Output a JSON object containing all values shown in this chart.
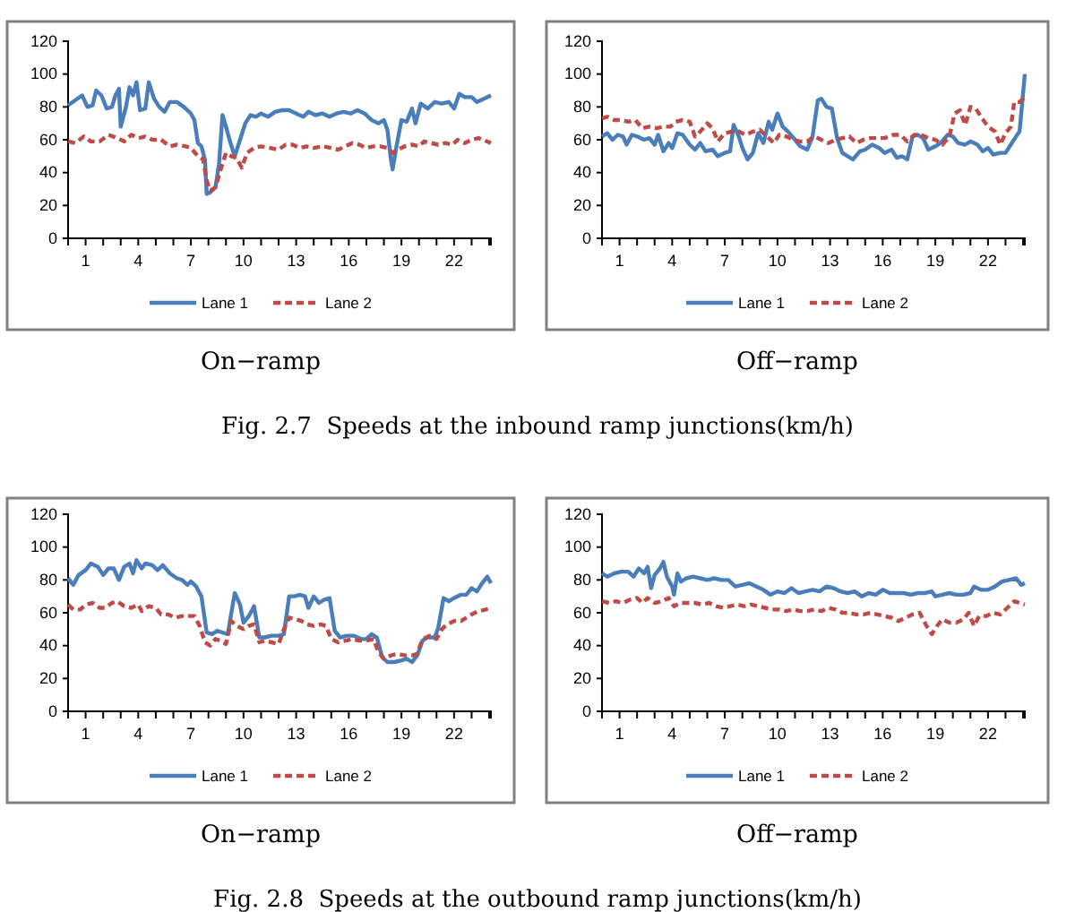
{
  "chart_data": [
    {
      "type": "line",
      "title": "On−ramp",
      "annotations": [
        "Fig. 2.7  Speeds at the inbound ramp junctions(km/h)"
      ],
      "legend": "bottom",
      "xlim": [
        0,
        24.1
      ],
      "ylim": [
        0,
        120
      ],
      "yticks": [
        0,
        20,
        40,
        60,
        80,
        100,
        120
      ],
      "xticks": [
        {
          "value": 0,
          "label": null
        },
        1,
        {
          "value": 2,
          "label": null
        },
        {
          "value": 3,
          "label": null
        },
        4,
        {
          "value": 5,
          "label": null
        },
        {
          "value": 6,
          "label": null
        },
        7,
        {
          "value": 8,
          "label": null
        },
        {
          "value": 9,
          "label": null
        },
        10,
        {
          "value": 11,
          "label": null
        },
        {
          "value": 12,
          "label": null
        },
        13,
        {
          "value": 14,
          "label": null
        },
        {
          "value": 15,
          "label": null
        },
        16,
        {
          "value": 17,
          "label": null
        },
        {
          "value": 18,
          "label": null
        },
        19,
        {
          "value": 20,
          "label": null
        },
        {
          "value": 21,
          "label": null
        },
        22,
        {
          "value": 23,
          "label": null
        },
        {
          "value": 24,
          "label": null
        }
      ],
      "series": [
        {
          "name": "Lane 1",
          "color": "#4a7ebb",
          "line_style": "solid",
          "x": [
            0,
            0.4,
            0.8,
            1.1,
            1.4,
            1.6,
            1.9,
            2.2,
            2.5,
            2.7,
            2.9,
            3.0,
            3.3,
            3.5,
            3.7,
            3.9,
            4.1,
            4.4,
            4.6,
            4.9,
            5.2,
            5.5,
            5.8,
            6.2,
            6.6,
            7.0,
            7.2,
            7.4,
            7.6,
            7.8,
            7.9,
            8.1,
            8.4,
            8.6,
            8.8,
            9.0,
            9.2,
            9.5,
            9.8,
            10.1,
            10.4,
            10.7,
            11.0,
            11.4,
            11.8,
            12.2,
            12.6,
            13.0,
            13.4,
            13.7,
            14.1,
            14.5,
            14.9,
            15.3,
            15.7,
            16.1,
            16.5,
            16.9,
            17.3,
            17.7,
            18.0,
            18.2,
            18.4,
            18.5,
            18.7,
            19.0,
            19.3,
            19.6,
            19.8,
            20.1,
            20.5,
            20.9,
            21.3,
            21.7,
            22.0,
            22.3,
            22.6,
            23.0,
            23.3,
            23.7,
            24.1
          ],
          "values": [
            81,
            84,
            87,
            80,
            81,
            90,
            87,
            79,
            80,
            87,
            91,
            68,
            80,
            92,
            87,
            95,
            78,
            79,
            95,
            85,
            80,
            77,
            83,
            83,
            80,
            76,
            72,
            58,
            56,
            48,
            27,
            28,
            31,
            45,
            75,
            68,
            60,
            50,
            60,
            70,
            75,
            74,
            76,
            74,
            77,
            78,
            78,
            76,
            74,
            77,
            75,
            76,
            74,
            76,
            77,
            76,
            78,
            76,
            72,
            70,
            72,
            66,
            48,
            42,
            55,
            72,
            71,
            79,
            70,
            82,
            79,
            83,
            82,
            83,
            79,
            88,
            86,
            86,
            83,
            85,
            87
          ]
        },
        {
          "name": "Lane 2",
          "color": "#be4b48",
          "line_style": "dashed",
          "x": [
            0,
            0.4,
            0.9,
            1.3,
            1.8,
            2.3,
            2.8,
            3.2,
            3.6,
            4.0,
            4.4,
            4.8,
            5.3,
            5.8,
            6.2,
            6.7,
            7.0,
            7.4,
            7.7,
            7.9,
            8.1,
            8.4,
            8.7,
            9.0,
            9.3,
            9.6,
            9.9,
            10.2,
            10.6,
            11.0,
            11.5,
            12.0,
            12.4,
            12.8,
            13.2,
            13.6,
            14.0,
            14.5,
            15.0,
            15.4,
            15.8,
            16.2,
            16.6,
            17.0,
            17.4,
            17.8,
            18.2,
            18.5,
            18.8,
            19.2,
            19.6,
            20.0,
            20.3,
            20.7,
            21.1,
            21.5,
            21.9,
            22.2,
            22.6,
            23.0,
            23.4,
            24.1
          ],
          "values": [
            59,
            58,
            62,
            59,
            59,
            63,
            61,
            59,
            63,
            61,
            62,
            60,
            60,
            56,
            57,
            56,
            55,
            50,
            48,
            35,
            29,
            31,
            42,
            52,
            50,
            49,
            43,
            52,
            55,
            56,
            55,
            54,
            57,
            57,
            55,
            56,
            55,
            56,
            55,
            54,
            56,
            58,
            57,
            55,
            56,
            56,
            55,
            52,
            54,
            56,
            57,
            56,
            59,
            58,
            57,
            58,
            57,
            60,
            58,
            60,
            61,
            58
          ]
        }
      ]
    },
    {
      "type": "line",
      "title": "Off−ramp",
      "legend": "bottom",
      "xlim": [
        0,
        24.1
      ],
      "ylim": [
        0,
        120
      ],
      "yticks": [
        0,
        20,
        40,
        60,
        80,
        100,
        120
      ],
      "xticks": [
        {
          "value": 0,
          "label": null
        },
        1,
        {
          "value": 2,
          "label": null
        },
        {
          "value": 3,
          "label": null
        },
        4,
        {
          "value": 5,
          "label": null
        },
        {
          "value": 6,
          "label": null
        },
        7,
        {
          "value": 8,
          "label": null
        },
        {
          "value": 9,
          "label": null
        },
        10,
        {
          "value": 11,
          "label": null
        },
        {
          "value": 12,
          "label": null
        },
        13,
        {
          "value": 14,
          "label": null
        },
        {
          "value": 15,
          "label": null
        },
        16,
        {
          "value": 17,
          "label": null
        },
        {
          "value": 18,
          "label": null
        },
        19,
        {
          "value": 20,
          "label": null
        },
        {
          "value": 21,
          "label": null
        },
        22,
        {
          "value": 23,
          "label": null
        },
        {
          "value": 24,
          "label": null
        }
      ],
      "series": [
        {
          "name": "Lane 1",
          "color": "#4a7ebb",
          "line_style": "solid",
          "x": [
            0,
            0.3,
            0.6,
            0.9,
            1.2,
            1.4,
            1.7,
            2.0,
            2.4,
            2.7,
            3.0,
            3.2,
            3.5,
            3.8,
            4.0,
            4.3,
            4.6,
            5.0,
            5.3,
            5.6,
            5.9,
            6.3,
            6.6,
            7.0,
            7.3,
            7.5,
            7.8,
            8.0,
            8.3,
            8.6,
            8.9,
            9.2,
            9.5,
            9.7,
            10.0,
            10.3,
            10.6,
            11.0,
            11.3,
            11.7,
            12.0,
            12.3,
            12.5,
            12.8,
            13.1,
            13.4,
            13.7,
            14.0,
            14.3,
            14.7,
            15.0,
            15.4,
            15.8,
            16.1,
            16.5,
            16.8,
            17.1,
            17.4,
            17.7,
            18.0,
            18.3,
            18.6,
            19.0,
            19.3,
            19.7,
            20.0,
            20.3,
            20.7,
            21.0,
            21.4,
            21.7,
            22.0,
            22.3,
            22.7,
            23.0,
            23.3,
            23.6,
            23.8,
            24.1
          ],
          "values": [
            62,
            64,
            60,
            63,
            62,
            57,
            63,
            62,
            60,
            61,
            57,
            63,
            53,
            58,
            55,
            64,
            63,
            57,
            54,
            58,
            53,
            54,
            50,
            52,
            53,
            69,
            62,
            55,
            48,
            52,
            64,
            58,
            71,
            66,
            76,
            68,
            65,
            60,
            56,
            54,
            62,
            84,
            85,
            80,
            79,
            61,
            52,
            50,
            48,
            53,
            54,
            57,
            55,
            52,
            54,
            49,
            50,
            48,
            62,
            63,
            61,
            54,
            56,
            58,
            63,
            62,
            58,
            57,
            59,
            57,
            53,
            55,
            51,
            52,
            52,
            57,
            62,
            65,
            100
          ]
        },
        {
          "name": "Lane 2",
          "color": "#be4b48",
          "line_style": "dashed",
          "x": [
            0,
            0.3,
            0.7,
            1.1,
            1.5,
            1.9,
            2.3,
            2.7,
            3.1,
            3.5,
            3.9,
            4.2,
            4.6,
            5.0,
            5.3,
            5.6,
            6.0,
            6.3,
            6.6,
            7.0,
            7.4,
            7.8,
            8.2,
            8.6,
            9.0,
            9.4,
            9.8,
            10.1,
            10.5,
            10.9,
            11.3,
            11.7,
            12.1,
            12.5,
            12.9,
            13.3,
            13.7,
            14.1,
            14.5,
            14.9,
            15.3,
            15.7,
            16.1,
            16.6,
            17.0,
            17.4,
            17.8,
            18.2,
            18.6,
            19.0,
            19.4,
            19.8,
            20.1,
            20.4,
            20.7,
            21.0,
            21.3,
            21.6,
            22.0,
            22.4,
            22.7,
            23.0,
            23.3,
            23.5,
            23.8,
            24.0,
            24.1
          ],
          "values": [
            73,
            74,
            72,
            72,
            71,
            72,
            67,
            68,
            67,
            68,
            68,
            71,
            72,
            71,
            62,
            65,
            70,
            67,
            59,
            64,
            65,
            65,
            63,
            65,
            66,
            62,
            58,
            63,
            62,
            60,
            59,
            59,
            62,
            60,
            58,
            60,
            61,
            62,
            58,
            60,
            61,
            61,
            61,
            63,
            63,
            59,
            63,
            63,
            61,
            60,
            57,
            62,
            76,
            78,
            69,
            80,
            79,
            74,
            68,
            65,
            57,
            64,
            68,
            83,
            83,
            85,
            87
          ]
        }
      ]
    },
    {
      "type": "line",
      "title": "On−ramp",
      "annotations": [
        "Fig. 2.8  Speeds at the outbound ramp junctions(km/h)"
      ],
      "legend": "bottom",
      "xlim": [
        0,
        24.1
      ],
      "ylim": [
        0,
        120
      ],
      "yticks": [
        0,
        20,
        40,
        60,
        80,
        100,
        120
      ],
      "xticks": [
        {
          "value": 0,
          "label": null
        },
        1,
        {
          "value": 2,
          "label": null
        },
        {
          "value": 3,
          "label": null
        },
        4,
        {
          "value": 5,
          "label": null
        },
        {
          "value": 6,
          "label": null
        },
        7,
        {
          "value": 8,
          "label": null
        },
        {
          "value": 9,
          "label": null
        },
        10,
        {
          "value": 11,
          "label": null
        },
        {
          "value": 12,
          "label": null
        },
        13,
        {
          "value": 14,
          "label": null
        },
        {
          "value": 15,
          "label": null
        },
        16,
        {
          "value": 17,
          "label": null
        },
        {
          "value": 18,
          "label": null
        },
        19,
        {
          "value": 20,
          "label": null
        },
        {
          "value": 21,
          "label": null
        },
        22,
        {
          "value": 23,
          "label": null
        },
        {
          "value": 24,
          "label": null
        }
      ],
      "series": [
        {
          "name": "Lane 1",
          "color": "#4a7ebb",
          "line_style": "solid",
          "x": [
            0,
            0.3,
            0.6,
            1.0,
            1.3,
            1.7,
            2.0,
            2.3,
            2.6,
            2.9,
            3.2,
            3.5,
            3.7,
            3.9,
            4.2,
            4.4,
            4.8,
            5.1,
            5.4,
            5.8,
            6.2,
            6.5,
            6.8,
            7.0,
            7.3,
            7.6,
            7.9,
            8.2,
            8.5,
            8.8,
            9.1,
            9.5,
            9.8,
            10.0,
            10.3,
            10.6,
            10.9,
            11.2,
            11.6,
            12.0,
            12.3,
            12.6,
            12.9,
            13.2,
            13.5,
            13.7,
            14.0,
            14.3,
            14.6,
            14.9,
            15.2,
            15.5,
            15.9,
            16.3,
            16.7,
            17.0,
            17.3,
            17.6,
            17.9,
            18.2,
            18.6,
            19.0,
            19.3,
            19.6,
            19.9,
            20.2,
            20.5,
            20.9,
            21.1,
            21.4,
            21.7,
            22.0,
            22.4,
            22.7,
            23.0,
            23.3,
            23.6,
            23.9,
            24.1
          ],
          "values": [
            81,
            77,
            83,
            86,
            90,
            88,
            83,
            87,
            87,
            80,
            88,
            90,
            84,
            92,
            87,
            90,
            89,
            86,
            89,
            84,
            81,
            80,
            77,
            79,
            76,
            70,
            48,
            47,
            49,
            48,
            47,
            72,
            65,
            54,
            58,
            64,
            45,
            45,
            46,
            46,
            47,
            70,
            70,
            71,
            70,
            63,
            70,
            66,
            68,
            69,
            49,
            45,
            46,
            46,
            44,
            44,
            47,
            45,
            33,
            30,
            30,
            31,
            32,
            30,
            34,
            43,
            45,
            45,
            51,
            69,
            67,
            69,
            71,
            71,
            75,
            73,
            78,
            82,
            78
          ]
        },
        {
          "name": "Lane 2",
          "color": "#be4b48",
          "line_style": "dashed",
          "x": [
            0,
            0.3,
            0.7,
            1.0,
            1.4,
            1.8,
            2.1,
            2.5,
            2.8,
            3.2,
            3.6,
            4.0,
            4.2,
            4.6,
            5.0,
            5.3,
            5.7,
            6.1,
            6.5,
            6.9,
            7.2,
            7.5,
            7.8,
            8.1,
            8.4,
            8.7,
            9.0,
            9.3,
            9.6,
            10.0,
            10.3,
            10.6,
            10.9,
            11.2,
            11.6,
            12.0,
            12.3,
            12.6,
            13.0,
            13.3,
            13.6,
            14.0,
            14.4,
            14.7,
            15.0,
            15.4,
            15.8,
            16.2,
            16.6,
            17.0,
            17.4,
            17.7,
            18.0,
            18.4,
            18.8,
            19.2,
            19.6,
            19.9,
            20.2,
            20.6,
            21.0,
            21.3,
            21.6,
            22.0,
            22.4,
            22.7,
            23.0,
            23.4,
            23.8,
            24.1
          ],
          "values": [
            65,
            62,
            62,
            65,
            66,
            63,
            63,
            66,
            67,
            64,
            63,
            65,
            61,
            64,
            63,
            59,
            59,
            57,
            58,
            58,
            58,
            52,
            42,
            40,
            44,
            43,
            41,
            55,
            52,
            50,
            52,
            53,
            42,
            43,
            42,
            41,
            50,
            57,
            56,
            55,
            53,
            52,
            53,
            52,
            44,
            42,
            43,
            44,
            43,
            43,
            44,
            36,
            32,
            34,
            35,
            34,
            34,
            35,
            44,
            46,
            44,
            50,
            53,
            55,
            55,
            57,
            59,
            61,
            62,
            63
          ]
        }
      ]
    },
    {
      "type": "line",
      "title": "Off−ramp",
      "legend": "bottom",
      "xlim": [
        0,
        24.1
      ],
      "ylim": [
        0,
        120
      ],
      "yticks": [
        0,
        20,
        40,
        60,
        80,
        100,
        120
      ],
      "xticks": [
        {
          "value": 0,
          "label": null
        },
        1,
        {
          "value": 2,
          "label": null
        },
        {
          "value": 3,
          "label": null
        },
        4,
        {
          "value": 5,
          "label": null
        },
        {
          "value": 6,
          "label": null
        },
        7,
        {
          "value": 8,
          "label": null
        },
        {
          "value": 9,
          "label": null
        },
        10,
        {
          "value": 11,
          "label": null
        },
        {
          "value": 12,
          "label": null
        },
        13,
        {
          "value": 14,
          "label": null
        },
        {
          "value": 15,
          "label": null
        },
        16,
        {
          "value": 17,
          "label": null
        },
        {
          "value": 18,
          "label": null
        },
        19,
        {
          "value": 20,
          "label": null
        },
        {
          "value": 21,
          "label": null
        },
        22,
        {
          "value": 23,
          "label": null
        },
        {
          "value": 24,
          "label": null
        }
      ],
      "series": [
        {
          "name": "Lane 1",
          "color": "#4a7ebb",
          "line_style": "solid",
          "x": [
            0,
            0.3,
            0.7,
            1.1,
            1.5,
            1.8,
            2.1,
            2.4,
            2.6,
            2.8,
            3.0,
            3.3,
            3.5,
            3.7,
            4.0,
            4.1,
            4.3,
            4.5,
            4.8,
            5.2,
            5.6,
            6.0,
            6.4,
            6.8,
            7.2,
            7.6,
            8.0,
            8.4,
            8.8,
            9.2,
            9.6,
            10.0,
            10.4,
            10.8,
            11.2,
            11.6,
            12.0,
            12.4,
            12.8,
            13.2,
            13.6,
            14.0,
            14.4,
            14.8,
            15.2,
            15.6,
            16.0,
            16.4,
            16.8,
            17.2,
            17.6,
            18.0,
            18.4,
            18.8,
            19.0,
            19.4,
            19.8,
            20.2,
            20.6,
            21.0,
            21.2,
            21.6,
            22.0,
            22.4,
            22.8,
            23.2,
            23.6,
            23.9,
            24.1
          ],
          "values": [
            84,
            82,
            84,
            85,
            85,
            82,
            87,
            84,
            88,
            75,
            83,
            87,
            91,
            82,
            76,
            71,
            84,
            79,
            81,
            82,
            81,
            80,
            81,
            80,
            80,
            76,
            77,
            78,
            76,
            74,
            71,
            73,
            72,
            75,
            72,
            73,
            74,
            73,
            76,
            75,
            73,
            72,
            73,
            70,
            72,
            71,
            74,
            72,
            72,
            72,
            71,
            72,
            72,
            73,
            70,
            71,
            72,
            71,
            71,
            72,
            76,
            74,
            74,
            76,
            79,
            80,
            81,
            77,
            78
          ]
        },
        {
          "name": "Lane 2",
          "color": "#be4b48",
          "line_style": "dashed",
          "x": [
            0,
            0.4,
            0.8,
            1.2,
            1.6,
            2.0,
            2.3,
            2.6,
            3.0,
            3.4,
            3.8,
            4.1,
            4.5,
            4.9,
            5.3,
            5.7,
            6.1,
            6.5,
            6.9,
            7.3,
            7.7,
            8.1,
            8.5,
            8.9,
            9.3,
            9.7,
            10.1,
            10.5,
            10.9,
            11.3,
            11.7,
            12.1,
            12.5,
            12.9,
            13.3,
            13.7,
            14.1,
            14.5,
            14.9,
            15.3,
            15.7,
            16.1,
            16.5,
            16.9,
            17.3,
            17.7,
            18.1,
            18.5,
            18.8,
            19.1,
            19.4,
            19.8,
            20.2,
            20.6,
            20.9,
            21.2,
            21.5,
            21.9,
            22.3,
            22.7,
            23.1,
            23.5,
            23.8,
            24.1
          ],
          "values": [
            67,
            66,
            67,
            66,
            68,
            69,
            66,
            69,
            66,
            67,
            69,
            64,
            66,
            66,
            66,
            65,
            66,
            64,
            63,
            64,
            65,
            64,
            65,
            64,
            63,
            62,
            62,
            61,
            62,
            61,
            61,
            62,
            61,
            63,
            62,
            60,
            60,
            59,
            59,
            60,
            59,
            58,
            57,
            55,
            57,
            59,
            60,
            52,
            47,
            52,
            56,
            54,
            54,
            56,
            60,
            52,
            58,
            58,
            60,
            59,
            63,
            67,
            66,
            65
          ]
        }
      ]
    }
  ]
}
